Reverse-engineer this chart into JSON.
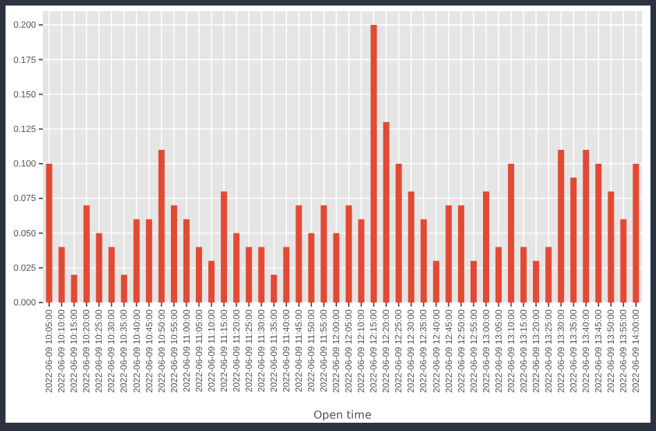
{
  "chart_data": {
    "type": "bar",
    "xlabel": "Open time",
    "categories": [
      "2022-06-09 10:05:00",
      "2022-06-09 10:10:00",
      "2022-06-09 10:15:00",
      "2022-06-09 10:20:00",
      "2022-06-09 10:25:00",
      "2022-06-09 10:30:00",
      "2022-06-09 10:35:00",
      "2022-06-09 10:40:00",
      "2022-06-09 10:45:00",
      "2022-06-09 10:50:00",
      "2022-06-09 10:55:00",
      "2022-06-09 11:00:00",
      "2022-06-09 11:05:00",
      "2022-06-09 11:10:00",
      "2022-06-09 11:15:00",
      "2022-06-09 11:20:00",
      "2022-06-09 11:25:00",
      "2022-06-09 11:30:00",
      "2022-06-09 11:35:00",
      "2022-06-09 11:40:00",
      "2022-06-09 11:45:00",
      "2022-06-09 11:50:00",
      "2022-06-09 11:55:00",
      "2022-06-09 12:00:00",
      "2022-06-09 12:05:00",
      "2022-06-09 12:10:00",
      "2022-06-09 12:15:00",
      "2022-06-09 12:20:00",
      "2022-06-09 12:25:00",
      "2022-06-09 12:30:00",
      "2022-06-09 12:35:00",
      "2022-06-09 12:40:00",
      "2022-06-09 12:45:00",
      "2022-06-09 12:50:00",
      "2022-06-09 12:55:00",
      "2022-06-09 13:00:00",
      "2022-06-09 13:05:00",
      "2022-06-09 13:10:00",
      "2022-06-09 13:15:00",
      "2022-06-09 13:20:00",
      "2022-06-09 13:25:00",
      "2022-06-09 13:30:00",
      "2022-06-09 13:35:00",
      "2022-06-09 13:40:00",
      "2022-06-09 13:45:00",
      "2022-06-09 13:50:00",
      "2022-06-09 13:55:00",
      "2022-06-09 14:00:00"
    ],
    "values": [
      0.1,
      0.04,
      0.02,
      0.07,
      0.05,
      0.04,
      0.02,
      0.06,
      0.06,
      0.11,
      0.07,
      0.06,
      0.04,
      0.03,
      0.08,
      0.05,
      0.04,
      0.04,
      0.02,
      0.04,
      0.07,
      0.05,
      0.07,
      0.05,
      0.07,
      0.06,
      0.2,
      0.13,
      0.1,
      0.08,
      0.06,
      0.03,
      0.07,
      0.07,
      0.03,
      0.08,
      0.04,
      0.1,
      0.04,
      0.03,
      0.04,
      0.11,
      0.09,
      0.11,
      0.1,
      0.08,
      0.06,
      0.1
    ],
    "color": "#e24a33",
    "ylim": [
      0,
      0.21
    ],
    "yticks": [
      {
        "value": 0,
        "label": "0.000"
      },
      {
        "value": 0.025,
        "label": "0.025"
      },
      {
        "value": 0.05,
        "label": "0.050"
      },
      {
        "value": 0.075,
        "label": "0.075"
      },
      {
        "value": 0.1,
        "label": "0.100"
      },
      {
        "value": 0.125,
        "label": "0.125"
      },
      {
        "value": 0.15,
        "label": "0.150"
      },
      {
        "value": 0.175,
        "label": "0.175"
      },
      {
        "value": 0.2,
        "label": "0.200"
      }
    ],
    "grid": true
  }
}
